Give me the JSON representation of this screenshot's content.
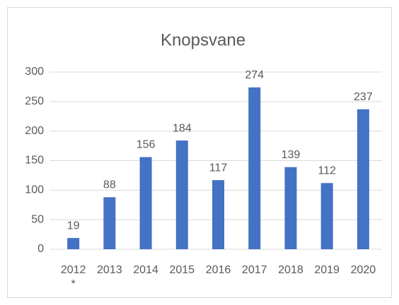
{
  "chart_data": {
    "type": "bar",
    "title": "Knopsvane",
    "categories": [
      "2012 *",
      "2013",
      "2014",
      "2015",
      "2016",
      "2017",
      "2018",
      "2019",
      "2020"
    ],
    "values": [
      19,
      88,
      156,
      184,
      117,
      274,
      139,
      112,
      237
    ],
    "color": "#4472c4",
    "ylim": [
      0,
      300
    ],
    "yticks": [
      0,
      50,
      100,
      150,
      200,
      250,
      300
    ],
    "grid": true
  }
}
